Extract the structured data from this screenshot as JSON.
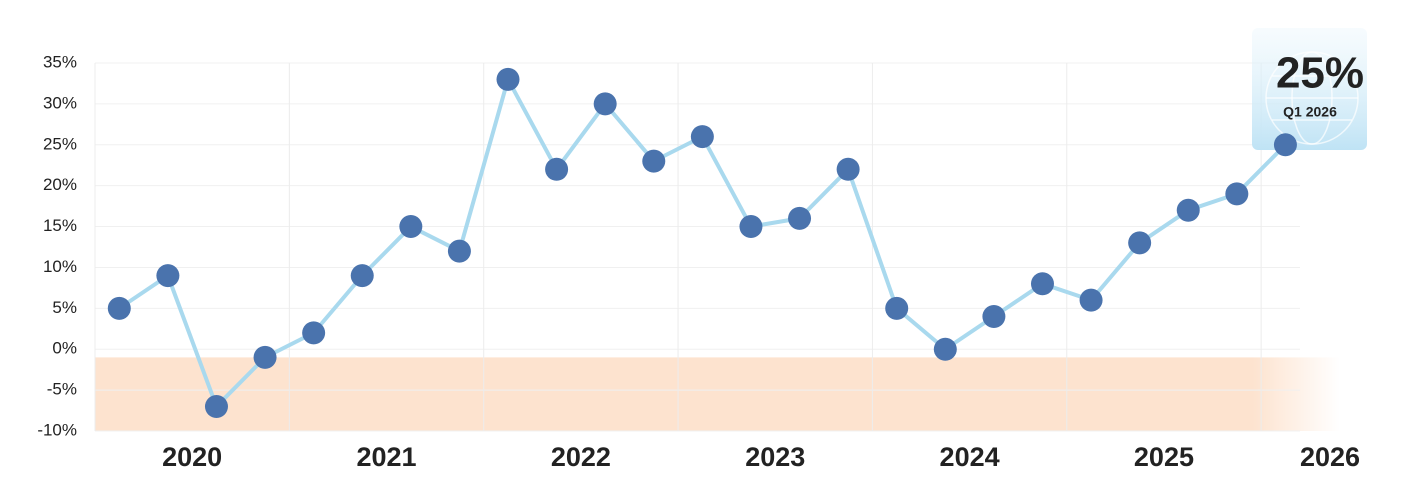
{
  "chart_data": {
    "type": "line",
    "x_labels": [
      "2020",
      "2021",
      "2022",
      "2023",
      "2024",
      "2025",
      "2026"
    ],
    "series": [
      {
        "color": "#a9d9ee",
        "marker_color": "#4a73ad",
        "values": [
          5,
          9,
          -7,
          -1,
          2,
          9,
          15,
          12,
          33,
          22,
          30,
          23,
          26,
          15,
          16,
          22,
          5,
          0,
          4,
          8,
          6,
          13,
          17,
          19,
          25
        ]
      }
    ],
    "ylim": [
      -10,
      35
    ],
    "yticks": [
      {
        "value": -10,
        "label": "-10%"
      },
      {
        "value": -5,
        "label": "-5%"
      },
      {
        "value": 0,
        "label": "0%"
      },
      {
        "value": 5,
        "label": "5%"
      },
      {
        "value": 10,
        "label": "10%"
      },
      {
        "value": 15,
        "label": "15%"
      },
      {
        "value": 20,
        "label": "20%"
      },
      {
        "value": 25,
        "label": "25%"
      },
      {
        "value": 30,
        "label": "30%"
      },
      {
        "value": 35,
        "label": "35%"
      }
    ],
    "shaded_range": [
      -10,
      -1
    ],
    "shade_color": "#fde3cf",
    "grid": true,
    "callout": {
      "value_label": "25%",
      "label": "Q1 2026"
    }
  }
}
